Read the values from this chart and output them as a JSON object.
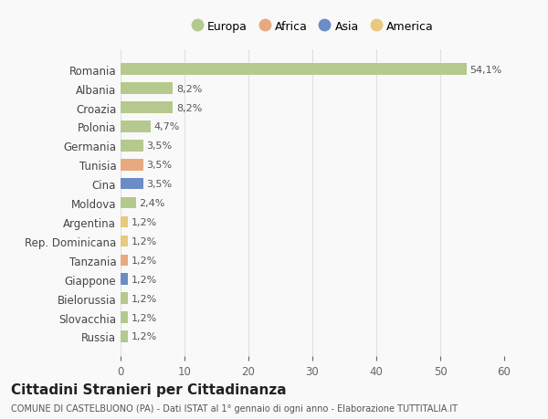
{
  "countries": [
    "Romania",
    "Albania",
    "Croazia",
    "Polonia",
    "Germania",
    "Tunisia",
    "Cina",
    "Moldova",
    "Argentina",
    "Rep. Dominicana",
    "Tanzania",
    "Giappone",
    "Bielorussia",
    "Slovacchia",
    "Russia"
  ],
  "values": [
    54.1,
    8.2,
    8.2,
    4.7,
    3.5,
    3.5,
    3.5,
    2.4,
    1.2,
    1.2,
    1.2,
    1.2,
    1.2,
    1.2,
    1.2
  ],
  "labels": [
    "54,1%",
    "8,2%",
    "8,2%",
    "4,7%",
    "3,5%",
    "3,5%",
    "3,5%",
    "2,4%",
    "1,2%",
    "1,2%",
    "1,2%",
    "1,2%",
    "1,2%",
    "1,2%",
    "1,2%"
  ],
  "continents": [
    "Europa",
    "Europa",
    "Europa",
    "Europa",
    "Europa",
    "Africa",
    "Asia",
    "Europa",
    "America",
    "America",
    "Africa",
    "Asia",
    "Europa",
    "Europa",
    "Europa"
  ],
  "continent_colors": {
    "Europa": "#b5c98e",
    "Africa": "#e8a97e",
    "Asia": "#6b8cc7",
    "America": "#e8c97e"
  },
  "legend_entries": [
    "Europa",
    "Africa",
    "Asia",
    "America"
  ],
  "legend_colors": [
    "#b5c98e",
    "#e8a97e",
    "#6b8cc7",
    "#e8c97e"
  ],
  "title": "Cittadini Stranieri per Cittadinanza",
  "subtitle": "COMUNE DI CASTELBUONO (PA) - Dati ISTAT al 1° gennaio di ogni anno - Elaborazione TUTTITALIA.IT",
  "xlim": [
    0,
    60
  ],
  "xticks": [
    0,
    10,
    20,
    30,
    40,
    50,
    60
  ],
  "background_color": "#f9f9f9",
  "grid_color": "#e0e0e0"
}
